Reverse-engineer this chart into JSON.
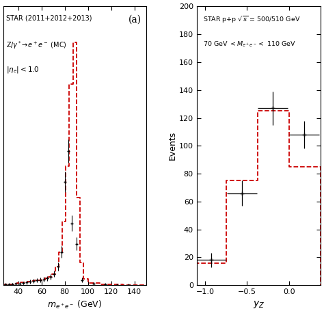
{
  "left_panel": {
    "panel_label": "(a)",
    "xlabel": "m_{e+e-} (GeV)",
    "xlim": [
      27,
      150
    ],
    "ylim": [
      0,
      270
    ],
    "xticks": [
      40,
      60,
      80,
      100,
      120,
      140
    ],
    "hist_bins": [
      27,
      30,
      33,
      36,
      39,
      42,
      45,
      48,
      51,
      54,
      57,
      60,
      63,
      66,
      69,
      72,
      75,
      78,
      81,
      84,
      87,
      90,
      93,
      96,
      100,
      110,
      120,
      130,
      140,
      150
    ],
    "hist_values": [
      0.5,
      0.8,
      1.0,
      1.5,
      2.0,
      2.5,
      3.0,
      3.5,
      4.0,
      4.5,
      5.0,
      5.5,
      6.5,
      8.0,
      11.0,
      18.0,
      32.0,
      62.0,
      115.0,
      195.0,
      235.0,
      85.0,
      22.0,
      6.0,
      2.0,
      1.0,
      0.5,
      0.2,
      0.1
    ],
    "data_x": [
      29,
      32,
      35,
      38,
      41,
      44,
      47,
      50,
      53,
      56,
      59,
      62,
      65,
      68,
      71,
      74,
      77,
      80,
      83,
      86,
      90,
      95,
      105,
      115,
      125,
      135
    ],
    "data_y": [
      0.5,
      0.8,
      1.0,
      1.2,
      1.5,
      2.0,
      2.5,
      3.5,
      4.0,
      4.5,
      5.0,
      5.5,
      6.5,
      8.0,
      11.0,
      18.0,
      32.0,
      100.0,
      130.0,
      60.0,
      40.0,
      5.0,
      1.5,
      0.5,
      0.2,
      0.1
    ],
    "data_yerr": [
      0.7,
      0.9,
      1.0,
      1.1,
      1.2,
      1.4,
      1.6,
      1.9,
      2.0,
      2.1,
      2.2,
      2.3,
      2.5,
      2.8,
      3.3,
      4.2,
      5.7,
      10.0,
      11.4,
      7.8,
      6.3,
      2.2,
      1.2,
      0.7,
      0.5,
      0.3
    ],
    "line1": "STAR (2011+2012+2013)",
    "line2": "Z/γ* → e⁺e⁻ (MC)",
    "line3": "|η_e|< 1.0"
  },
  "right_panel": {
    "ylabel": "Events",
    "xlabel": "y_Z",
    "xlim": [
      -1.1,
      0.38
    ],
    "ylim": [
      0,
      200
    ],
    "xticks": [
      -1.0,
      -0.5,
      0.0
    ],
    "yticks": [
      0,
      20,
      40,
      60,
      80,
      100,
      120,
      140,
      160,
      180,
      200
    ],
    "hist_bins": [
      -1.1,
      -0.75,
      -0.375,
      0.0,
      0.375
    ],
    "hist_values": [
      16,
      75,
      125,
      85
    ],
    "data_x": [
      -0.93,
      -0.56,
      -0.19,
      0.18
    ],
    "data_y": [
      18,
      66,
      127,
      108
    ],
    "data_xerr": [
      0.18,
      0.18,
      0.18,
      0.18
    ],
    "data_yerr": [
      5,
      9,
      12,
      10
    ],
    "line1": "STAR p+p √s = 500/510 GeV",
    "line2": "70 GeV < M_{e+e-} < 110 GeV"
  },
  "hist_color": "#cc0000",
  "data_color": "black",
  "bg_color": "white"
}
